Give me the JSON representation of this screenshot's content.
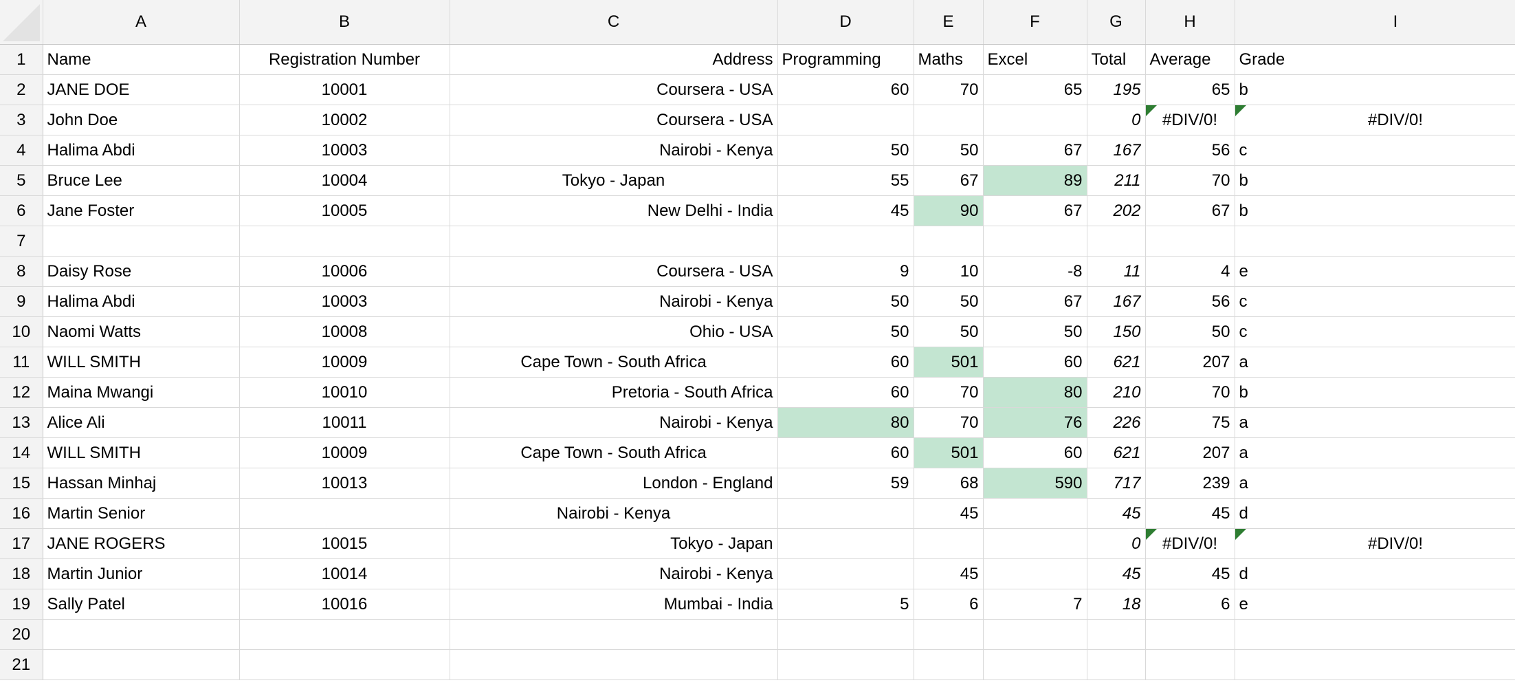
{
  "columns": [
    "A",
    "B",
    "C",
    "D",
    "E",
    "F",
    "G",
    "H",
    "I"
  ],
  "rows": [
    {
      "n": "1",
      "cells": [
        "Name",
        "Registration Number",
        "Address",
        "Programming",
        "Maths",
        "Excel",
        "Total",
        "Average",
        "Grade"
      ]
    },
    {
      "n": "2",
      "cells": [
        "            JANE DOE",
        "10001",
        "Coursera - USA",
        "60",
        "70",
        "65",
        "195",
        "65",
        "b"
      ]
    },
    {
      "n": "3",
      "cells": [
        "John Doe",
        "10002",
        "Coursera - USA",
        "",
        "",
        "",
        "0",
        "#DIV/0!",
        "#DIV/0!"
      ]
    },
    {
      "n": "4",
      "cells": [
        "Halima Abdi",
        "10003",
        "Nairobi - Kenya",
        "50",
        "50",
        "67",
        "167",
        "56",
        "c"
      ]
    },
    {
      "n": "5",
      "cells": [
        "Bruce     Lee",
        "10004",
        "Tokyo - Japan      ",
        "55",
        "67",
        "89",
        "211",
        "70",
        "b"
      ]
    },
    {
      "n": "6",
      "cells": [
        "   Jane  Foster",
        "10005",
        "New Delhi - India",
        "45",
        "90",
        "67",
        "202",
        "67",
        "b"
      ]
    },
    {
      "n": "7",
      "cells": [
        "",
        "",
        "",
        "",
        "",
        "",
        "",
        "",
        ""
      ]
    },
    {
      "n": "8",
      "cells": [
        "Daisy     Rose",
        "10006",
        "Coursera - USA",
        "9",
        "10",
        "-8",
        "11",
        "4",
        "e"
      ]
    },
    {
      "n": "9",
      "cells": [
        "Halima Abdi",
        "10003",
        "Nairobi - Kenya",
        "50",
        "50",
        "67",
        "167",
        "56",
        "c"
      ]
    },
    {
      "n": "10",
      "cells": [
        "      Naomi Watts",
        "10008",
        "Ohio - USA",
        "50",
        "50",
        "50",
        "150",
        "50",
        "c"
      ]
    },
    {
      "n": "11",
      "cells": [
        "WILL SMITH",
        "10009",
        "Cape Town - South Africa",
        "60",
        "501",
        "60",
        "621",
        "207",
        "a"
      ]
    },
    {
      "n": "12",
      "cells": [
        "Maina Mwangi",
        "10010",
        "Pretoria - South Africa",
        "60",
        "70",
        "80",
        "210",
        "70",
        "b"
      ]
    },
    {
      "n": "13",
      "cells": [
        "Alice Ali",
        "10011",
        "Nairobi - Kenya",
        "80",
        "70",
        "76",
        "226",
        "75",
        "a"
      ]
    },
    {
      "n": "14",
      "cells": [
        "WILL SMITH",
        "10009",
        "Cape Town - South Africa",
        "60",
        "501",
        "60",
        "621",
        "207",
        "a"
      ]
    },
    {
      "n": "15",
      "cells": [
        "    Hassan Minhaj",
        "10013",
        "London - England",
        "59",
        "68",
        "590",
        "717",
        "239",
        "a"
      ]
    },
    {
      "n": "16",
      "cells": [
        "Martin Senior",
        "",
        "Nairobi - Kenya",
        "",
        "45",
        "",
        "45",
        "45",
        "d"
      ]
    },
    {
      "n": "17",
      "cells": [
        "JANE        ROGERS",
        "10015",
        "Tokyo - Japan",
        "",
        "",
        "",
        "0",
        "#DIV/0!",
        "#DIV/0!"
      ]
    },
    {
      "n": "18",
      "cells": [
        "Martin Junior",
        "10014",
        "Nairobi - Kenya",
        "",
        "45",
        "",
        "45",
        "45",
        "d"
      ]
    },
    {
      "n": "19",
      "cells": [
        "         Sally Patel",
        "10016",
        "Mumbai - India",
        "5",
        "6",
        "7",
        "18",
        "6",
        "e"
      ]
    },
    {
      "n": "20",
      "cells": [
        "",
        "",
        "",
        "",
        "",
        "",
        "",
        "",
        ""
      ]
    },
    {
      "n": "21",
      "cells": [
        "",
        "",
        "",
        "",
        "",
        "",
        "",
        "",
        ""
      ]
    }
  ],
  "highlight_color": "#c3e5d1",
  "error_flag_color": "#2e7d32"
}
